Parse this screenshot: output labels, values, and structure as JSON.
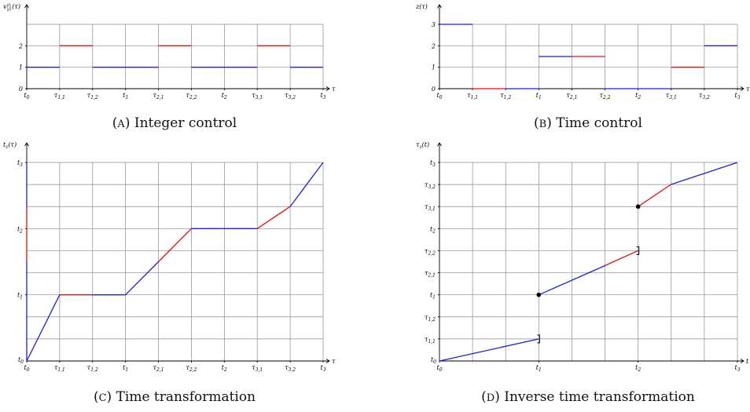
{
  "colors": {
    "blue": "#1f1fd6",
    "red": "#e01010",
    "grid": "#8a8a8a"
  },
  "chart_data": [
    {
      "type": "line",
      "caption": "(A) Integer control",
      "ylabel": "v_{|J|}^{|I|}(τ)",
      "xlabel": "τ",
      "xlim": [
        0,
        9
      ],
      "ylim": [
        0,
        3
      ],
      "x_ticks": [
        {
          "v": 0,
          "label": "t0"
        },
        {
          "v": 1,
          "label": "τ1,1"
        },
        {
          "v": 2,
          "label": "τ1,2"
        },
        {
          "v": 3,
          "label": "t1"
        },
        {
          "v": 4,
          "label": "τ2,1"
        },
        {
          "v": 5,
          "label": "τ2,2"
        },
        {
          "v": 6,
          "label": "t2"
        },
        {
          "v": 7,
          "label": "τ3,1"
        },
        {
          "v": 8,
          "label": "τ3,2"
        },
        {
          "v": 9,
          "label": "t3"
        }
      ],
      "y_ticks": [
        {
          "v": 0,
          "label": "0"
        },
        {
          "v": 1,
          "label": "1"
        },
        {
          "v": 2,
          "label": "2"
        }
      ],
      "grid": true,
      "segments": [
        {
          "x": [
            0,
            1
          ],
          "y": [
            1,
            1
          ],
          "color": "blue"
        },
        {
          "x": [
            1,
            2
          ],
          "y": [
            2,
            2
          ],
          "color": "red"
        },
        {
          "x": [
            2,
            4
          ],
          "y": [
            1,
            1
          ],
          "color": "blue"
        },
        {
          "x": [
            4,
            5
          ],
          "y": [
            2,
            2
          ],
          "color": "red"
        },
        {
          "x": [
            5,
            7
          ],
          "y": [
            1,
            1
          ],
          "color": "blue"
        },
        {
          "x": [
            7,
            8
          ],
          "y": [
            2,
            2
          ],
          "color": "red"
        },
        {
          "x": [
            8,
            9
          ],
          "y": [
            1,
            1
          ],
          "color": "blue"
        }
      ],
      "points": []
    },
    {
      "type": "line",
      "caption": "(B) Time control",
      "ylabel": "z(τ)",
      "xlabel": "τ",
      "xlim": [
        0,
        9
      ],
      "ylim": [
        0,
        3
      ],
      "x_ticks": [
        {
          "v": 0,
          "label": "t0"
        },
        {
          "v": 1,
          "label": "τ1,1"
        },
        {
          "v": 2,
          "label": "τ1,2"
        },
        {
          "v": 3,
          "label": "t1"
        },
        {
          "v": 4,
          "label": "τ2,1"
        },
        {
          "v": 5,
          "label": "τ2,2"
        },
        {
          "v": 6,
          "label": "t2"
        },
        {
          "v": 7,
          "label": "τ3,1"
        },
        {
          "v": 8,
          "label": "τ3,2"
        },
        {
          "v": 9,
          "label": "t3"
        }
      ],
      "y_ticks": [
        {
          "v": 0,
          "label": "0"
        },
        {
          "v": 1,
          "label": "1"
        },
        {
          "v": 2,
          "label": "2"
        },
        {
          "v": 3,
          "label": "3"
        }
      ],
      "grid": true,
      "segments": [
        {
          "x": [
            0,
            1
          ],
          "y": [
            3,
            3
          ],
          "color": "blue"
        },
        {
          "x": [
            1,
            2
          ],
          "y": [
            0,
            0
          ],
          "color": "red"
        },
        {
          "x": [
            2,
            3
          ],
          "y": [
            0,
            0
          ],
          "color": "blue"
        },
        {
          "x": [
            3,
            4
          ],
          "y": [
            1.5,
            1.5
          ],
          "color": "blue"
        },
        {
          "x": [
            4,
            5
          ],
          "y": [
            1.5,
            1.5
          ],
          "color": "red"
        },
        {
          "x": [
            5,
            7
          ],
          "y": [
            0,
            0
          ],
          "color": "blue"
        },
        {
          "x": [
            7,
            8
          ],
          "y": [
            1,
            1
          ],
          "color": "red"
        },
        {
          "x": [
            8,
            9
          ],
          "y": [
            2,
            2
          ],
          "color": "blue"
        }
      ],
      "points": []
    },
    {
      "type": "line",
      "caption": "(C) Time transformation",
      "ylabel": "t_z(τ)",
      "xlabel": "τ",
      "xlim": [
        0,
        9
      ],
      "ylim": [
        0,
        9
      ],
      "x_ticks": [
        {
          "v": 0,
          "label": "t0"
        },
        {
          "v": 1,
          "label": "τ1,1"
        },
        {
          "v": 2,
          "label": "τ1,2"
        },
        {
          "v": 3,
          "label": "t1"
        },
        {
          "v": 4,
          "label": "τ2,1"
        },
        {
          "v": 5,
          "label": "τ2,2"
        },
        {
          "v": 6,
          "label": "t2"
        },
        {
          "v": 7,
          "label": "τ3,1"
        },
        {
          "v": 8,
          "label": "τ3,2"
        },
        {
          "v": 9,
          "label": "t3"
        }
      ],
      "y_ticks": [
        {
          "v": 3,
          "label": "t1"
        },
        {
          "v": 6,
          "label": "t2"
        },
        {
          "v": 9,
          "label": "t3"
        }
      ],
      "y_tick0_label": "t0",
      "grid": true,
      "segments": [
        {
          "x": [
            0,
            1
          ],
          "y": [
            0,
            3
          ],
          "color": "blue"
        },
        {
          "x": [
            1,
            2
          ],
          "y": [
            3,
            3
          ],
          "color": "red"
        },
        {
          "x": [
            2,
            3
          ],
          "y": [
            3,
            3
          ],
          "color": "blue"
        },
        {
          "x": [
            3,
            4
          ],
          "y": [
            3,
            4.5
          ],
          "color": "blue"
        },
        {
          "x": [
            4,
            5
          ],
          "y": [
            4.5,
            6
          ],
          "color": "red"
        },
        {
          "x": [
            5,
            7
          ],
          "y": [
            6,
            6
          ],
          "color": "blue"
        },
        {
          "x": [
            7,
            8
          ],
          "y": [
            6,
            7
          ],
          "color": "red"
        },
        {
          "x": [
            8,
            9
          ],
          "y": [
            7,
            9
          ],
          "color": "blue"
        },
        {
          "x": [
            0,
            0
          ],
          "y": [
            0,
            4.5
          ],
          "color": "blue"
        },
        {
          "x": [
            0,
            0
          ],
          "y": [
            4.5,
            7
          ],
          "color": "red"
        },
        {
          "x": [
            0,
            0
          ],
          "y": [
            7,
            9
          ],
          "color": "blue"
        }
      ],
      "points": []
    },
    {
      "type": "line",
      "caption": "(D) Inverse time transformation",
      "ylabel": "τ_z(t)",
      "xlabel": "t",
      "xlim": [
        0,
        3
      ],
      "ylim": [
        0,
        9
      ],
      "x_ticks": [
        {
          "v": 0,
          "label": "t0"
        },
        {
          "v": 1,
          "label": "t1"
        },
        {
          "v": 2,
          "label": "t2"
        },
        {
          "v": 3,
          "label": "t3"
        }
      ],
      "y_ticks": [
        {
          "v": 1,
          "label": "τ1,1"
        },
        {
          "v": 2,
          "label": "τ1,2"
        },
        {
          "v": 3,
          "label": "t1"
        },
        {
          "v": 4,
          "label": "τ2,1"
        },
        {
          "v": 5,
          "label": "τ2,2"
        },
        {
          "v": 6,
          "label": "t2"
        },
        {
          "v": 7,
          "label": "τ3,1"
        },
        {
          "v": 8,
          "label": "τ3,2"
        },
        {
          "v": 9,
          "label": "t3"
        }
      ],
      "y_tick0_label": "t0",
      "grid": true,
      "segments": [
        {
          "x": [
            0,
            1
          ],
          "y": [
            0,
            1
          ],
          "color": "blue"
        },
        {
          "x": [
            1,
            1.67
          ],
          "y": [
            3,
            4.33
          ],
          "color": "blue"
        },
        {
          "x": [
            1.67,
            2
          ],
          "y": [
            4.33,
            5
          ],
          "color": "red"
        },
        {
          "x": [
            2,
            2.33
          ],
          "y": [
            7,
            8
          ],
          "color": "red"
        },
        {
          "x": [
            2.33,
            3
          ],
          "y": [
            8,
            9
          ],
          "color": "blue"
        }
      ],
      "points": [
        {
          "x": 1,
          "y": 3,
          "style": "filled"
        },
        {
          "x": 2,
          "y": 7,
          "style": "filled"
        },
        {
          "x": 1,
          "y": 1,
          "style": "bracket"
        },
        {
          "x": 2,
          "y": 5,
          "style": "bracket"
        }
      ]
    }
  ]
}
